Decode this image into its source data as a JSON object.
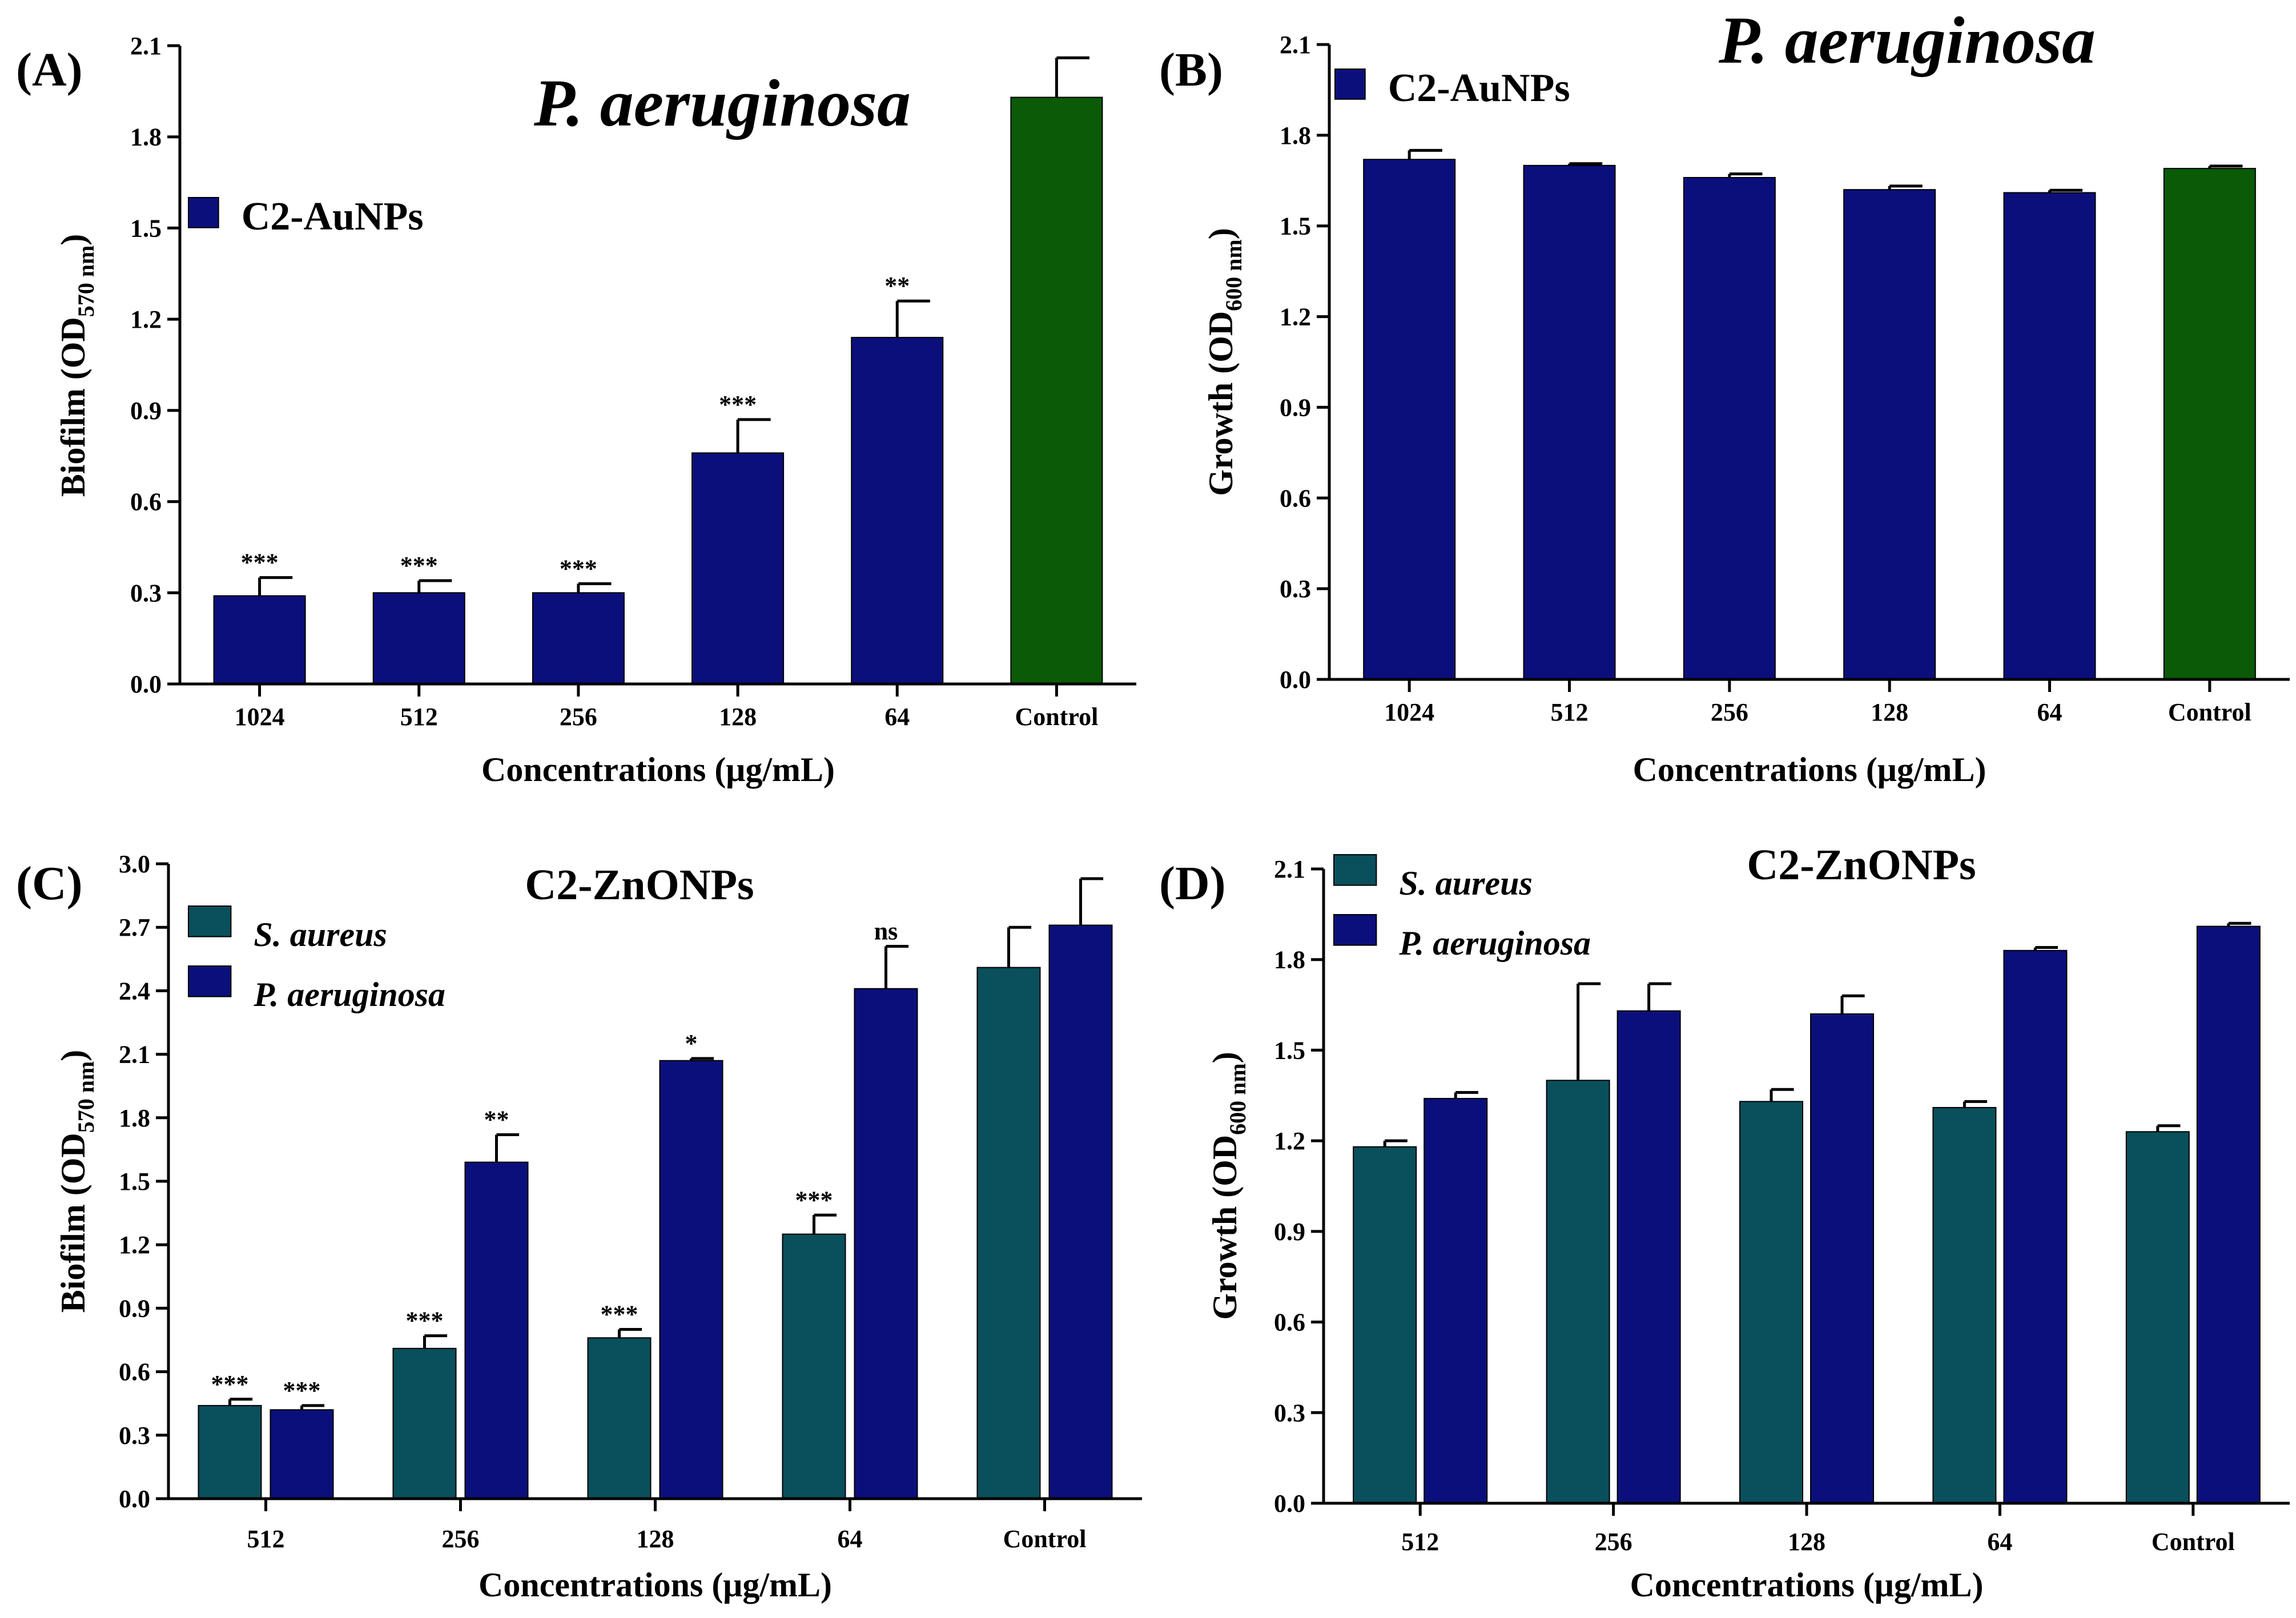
{
  "xlabel": "Concentrations (μg/mL)",
  "colors": {
    "blue": "#0b0f7c",
    "green": "#0a5a07",
    "teal": "#0a4f5c",
    "axis": "#000000"
  },
  "chart_data": [
    {
      "panel": "(A)",
      "type": "bar",
      "title": "P. aeruginosa",
      "title_italic": true,
      "ylabel": "Biofilm (OD570 nm)",
      "ylabel_main": "Biofilm (OD",
      "ylabel_sub": "570 nm",
      "ylabel_end": ")",
      "xlabel": "Concentrations (μg/mL)",
      "ylim": [
        0,
        2.1
      ],
      "yticks": [
        "0.0",
        "0.3",
        "0.6",
        "0.9",
        "1.2",
        "1.5",
        "1.8",
        "2.1"
      ],
      "categories": [
        "1024",
        "512",
        "256",
        "128",
        "64",
        "Control"
      ],
      "legend": [
        {
          "label": "C2-AuNPs",
          "color": "#0b0f7c",
          "italic": false
        }
      ],
      "legend_position": "top-left",
      "series": [
        {
          "name": "C2-AuNPs",
          "values": [
            0.29,
            0.3,
            0.3,
            0.76,
            1.14,
            1.93
          ],
          "errors": [
            0.06,
            0.04,
            0.03,
            0.11,
            0.12,
            0.13
          ],
          "colors": [
            "#0b0f7c",
            "#0b0f7c",
            "#0b0f7c",
            "#0b0f7c",
            "#0b0f7c",
            "#0a5a07"
          ],
          "significance": [
            "***",
            "***",
            "***",
            "***",
            "**",
            ""
          ]
        }
      ]
    },
    {
      "panel": "(B)",
      "type": "bar",
      "title": "P. aeruginosa",
      "title_italic": true,
      "ylabel": "Growth (OD600 nm)",
      "ylabel_main": "Growth (OD",
      "ylabel_sub": "600 nm",
      "ylabel_end": ")",
      "xlabel": "Concentrations (μg/mL)",
      "ylim": [
        0,
        2.1
      ],
      "yticks": [
        "0.0",
        "0.3",
        "0.6",
        "0.9",
        "1.2",
        "1.5",
        "1.8",
        "2.1"
      ],
      "categories": [
        "1024",
        "512",
        "256",
        "128",
        "64",
        "Control"
      ],
      "legend": [
        {
          "label": "C2-AuNPs",
          "color": "#0b0f7c",
          "italic": false
        }
      ],
      "legend_position": "top-left",
      "series": [
        {
          "name": "C2-AuNPs",
          "values": [
            1.72,
            1.7,
            1.66,
            1.62,
            1.61,
            1.69
          ],
          "errors": [
            0.03,
            0.006,
            0.012,
            0.012,
            0.008,
            0.008
          ],
          "colors": [
            "#0b0f7c",
            "#0b0f7c",
            "#0b0f7c",
            "#0b0f7c",
            "#0b0f7c",
            "#0a5a07"
          ],
          "significance": [
            "",
            "",
            "",
            "",
            "",
            ""
          ]
        }
      ]
    },
    {
      "panel": "(C)",
      "type": "bar",
      "title": "C2-ZnONPs",
      "title_italic": false,
      "ylabel": "Biofilm (OD570 nm)",
      "ylabel_main": "Biofilm (OD",
      "ylabel_sub": "570 nm",
      "ylabel_end": ")",
      "xlabel": "Concentrations (μg/mL)",
      "ylim": [
        0,
        3.0
      ],
      "yticks": [
        "0.0",
        "0.3",
        "0.6",
        "0.9",
        "1.2",
        "1.5",
        "1.8",
        "2.1",
        "2.4",
        "2.7",
        "3.0"
      ],
      "categories": [
        "512",
        "256",
        "128",
        "64",
        "Control"
      ],
      "legend": [
        {
          "label": "S. aureus",
          "color": "#0a4f5c",
          "italic": true
        },
        {
          "label": "P. aeruginosa",
          "color": "#0b0f7c",
          "italic": true
        }
      ],
      "legend_position": "top-left",
      "series": [
        {
          "name": "S. aureus",
          "values": [
            0.44,
            0.71,
            0.76,
            1.25,
            2.51
          ],
          "errors": [
            0.03,
            0.06,
            0.04,
            0.09,
            0.19
          ],
          "colors": [
            "#0a4f5c",
            "#0a4f5c",
            "#0a4f5c",
            "#0a4f5c",
            "#0a4f5c"
          ],
          "significance": [
            "***",
            "***",
            "***",
            "***",
            ""
          ]
        },
        {
          "name": "P. aeruginosa",
          "values": [
            0.42,
            1.59,
            2.07,
            2.41,
            2.71
          ],
          "errors": [
            0.02,
            0.13,
            0.01,
            0.2,
            0.22
          ],
          "colors": [
            "#0b0f7c",
            "#0b0f7c",
            "#0b0f7c",
            "#0b0f7c",
            "#0b0f7c"
          ],
          "significance": [
            "***",
            "**",
            "*",
            "ns",
            ""
          ]
        }
      ]
    },
    {
      "panel": "(D)",
      "type": "bar",
      "title": "C2-ZnONPs",
      "title_italic": false,
      "ylabel": "Growth (OD600 nm)",
      "ylabel_main": "Growth (OD",
      "ylabel_sub": "600 nm",
      "ylabel_end": ")",
      "xlabel": "Concentrations (μg/mL)",
      "ylim": [
        0,
        2.1
      ],
      "yticks": [
        "0.0",
        "0.3",
        "0.6",
        "0.9",
        "1.2",
        "1.5",
        "1.8",
        "2.1"
      ],
      "categories": [
        "512",
        "256",
        "128",
        "64",
        "Control"
      ],
      "legend": [
        {
          "label": "S. aureus",
          "color": "#0a4f5c",
          "italic": true
        },
        {
          "label": "P. aeruginosa",
          "color": "#0b0f7c",
          "italic": true
        }
      ],
      "legend_position": "top-left",
      "series": [
        {
          "name": "S. aureus",
          "values": [
            1.18,
            1.4,
            1.33,
            1.31,
            1.23
          ],
          "errors": [
            0.02,
            0.32,
            0.04,
            0.02,
            0.02
          ],
          "colors": [
            "#0a4f5c",
            "#0a4f5c",
            "#0a4f5c",
            "#0a4f5c",
            "#0a4f5c"
          ],
          "significance": [
            "",
            "",
            "",
            "",
            ""
          ]
        },
        {
          "name": "P. aeruginosa",
          "values": [
            1.34,
            1.63,
            1.62,
            1.83,
            1.91
          ],
          "errors": [
            0.02,
            0.09,
            0.06,
            0.01,
            0.01
          ],
          "colors": [
            "#0b0f7c",
            "#0b0f7c",
            "#0b0f7c",
            "#0b0f7c",
            "#0b0f7c"
          ],
          "significance": [
            "",
            "",
            "",
            "",
            ""
          ]
        }
      ]
    }
  ]
}
